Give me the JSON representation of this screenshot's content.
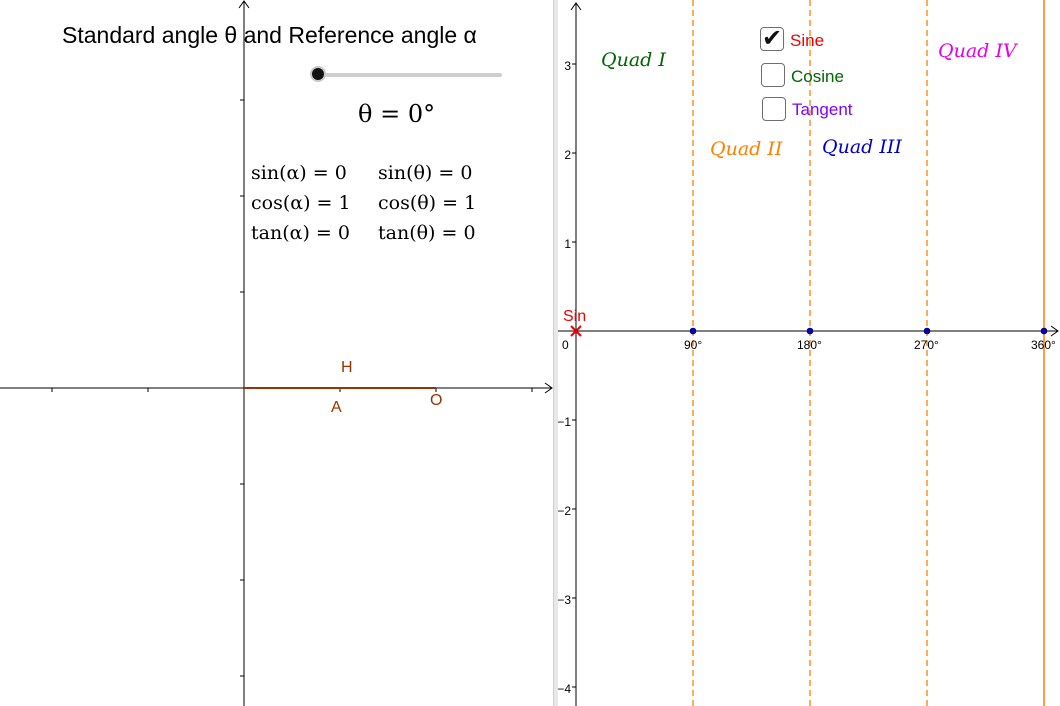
{
  "title": "Standard angle θ and Reference angle α",
  "theta_display": "θ = 0°",
  "slider": {
    "value_degrees": 0,
    "min": 0,
    "max": 360
  },
  "trig_values": {
    "sin_alpha": "sin(α) = 0",
    "cos_alpha": "cos(α) = 1",
    "tan_alpha": "tan(α) = 0",
    "sin_theta": "sin(θ) = 0",
    "cos_theta": "cos(θ) = 1",
    "tan_theta": "tan(θ) = 0"
  },
  "triangle_labels": {
    "h": "H",
    "a": "A",
    "o": "O",
    "color": "#993300"
  },
  "checkboxes": {
    "sine": {
      "label": "Sine",
      "checked": true,
      "color": "#ee0000"
    },
    "cosine": {
      "label": "Cosine",
      "checked": false,
      "color": "#006600"
    },
    "tangent": {
      "label": "Tangent",
      "checked": false,
      "color": "#7f00ff"
    }
  },
  "quadrants": {
    "q1": {
      "label": "Quad I",
      "color": "#006600"
    },
    "q2": {
      "label": "Quad II",
      "color": "#ff7f00"
    },
    "q3": {
      "label": "Quad III",
      "color": "#0000cc"
    },
    "q4": {
      "label": "Quad IV",
      "color": "#e600e6"
    }
  },
  "graph": {
    "x_ticks": [
      "0",
      "90°",
      "180°",
      "270°",
      "360°"
    ],
    "y_ticks": [
      "3",
      "2",
      "1",
      "−1",
      "−2",
      "−3",
      "−4"
    ],
    "sin_point_label": "Sin",
    "sin_color": "#ee0000",
    "guide_color": "#ff7f00",
    "end_line_color": "#ff7f00",
    "point_color": "#0000cc"
  }
}
